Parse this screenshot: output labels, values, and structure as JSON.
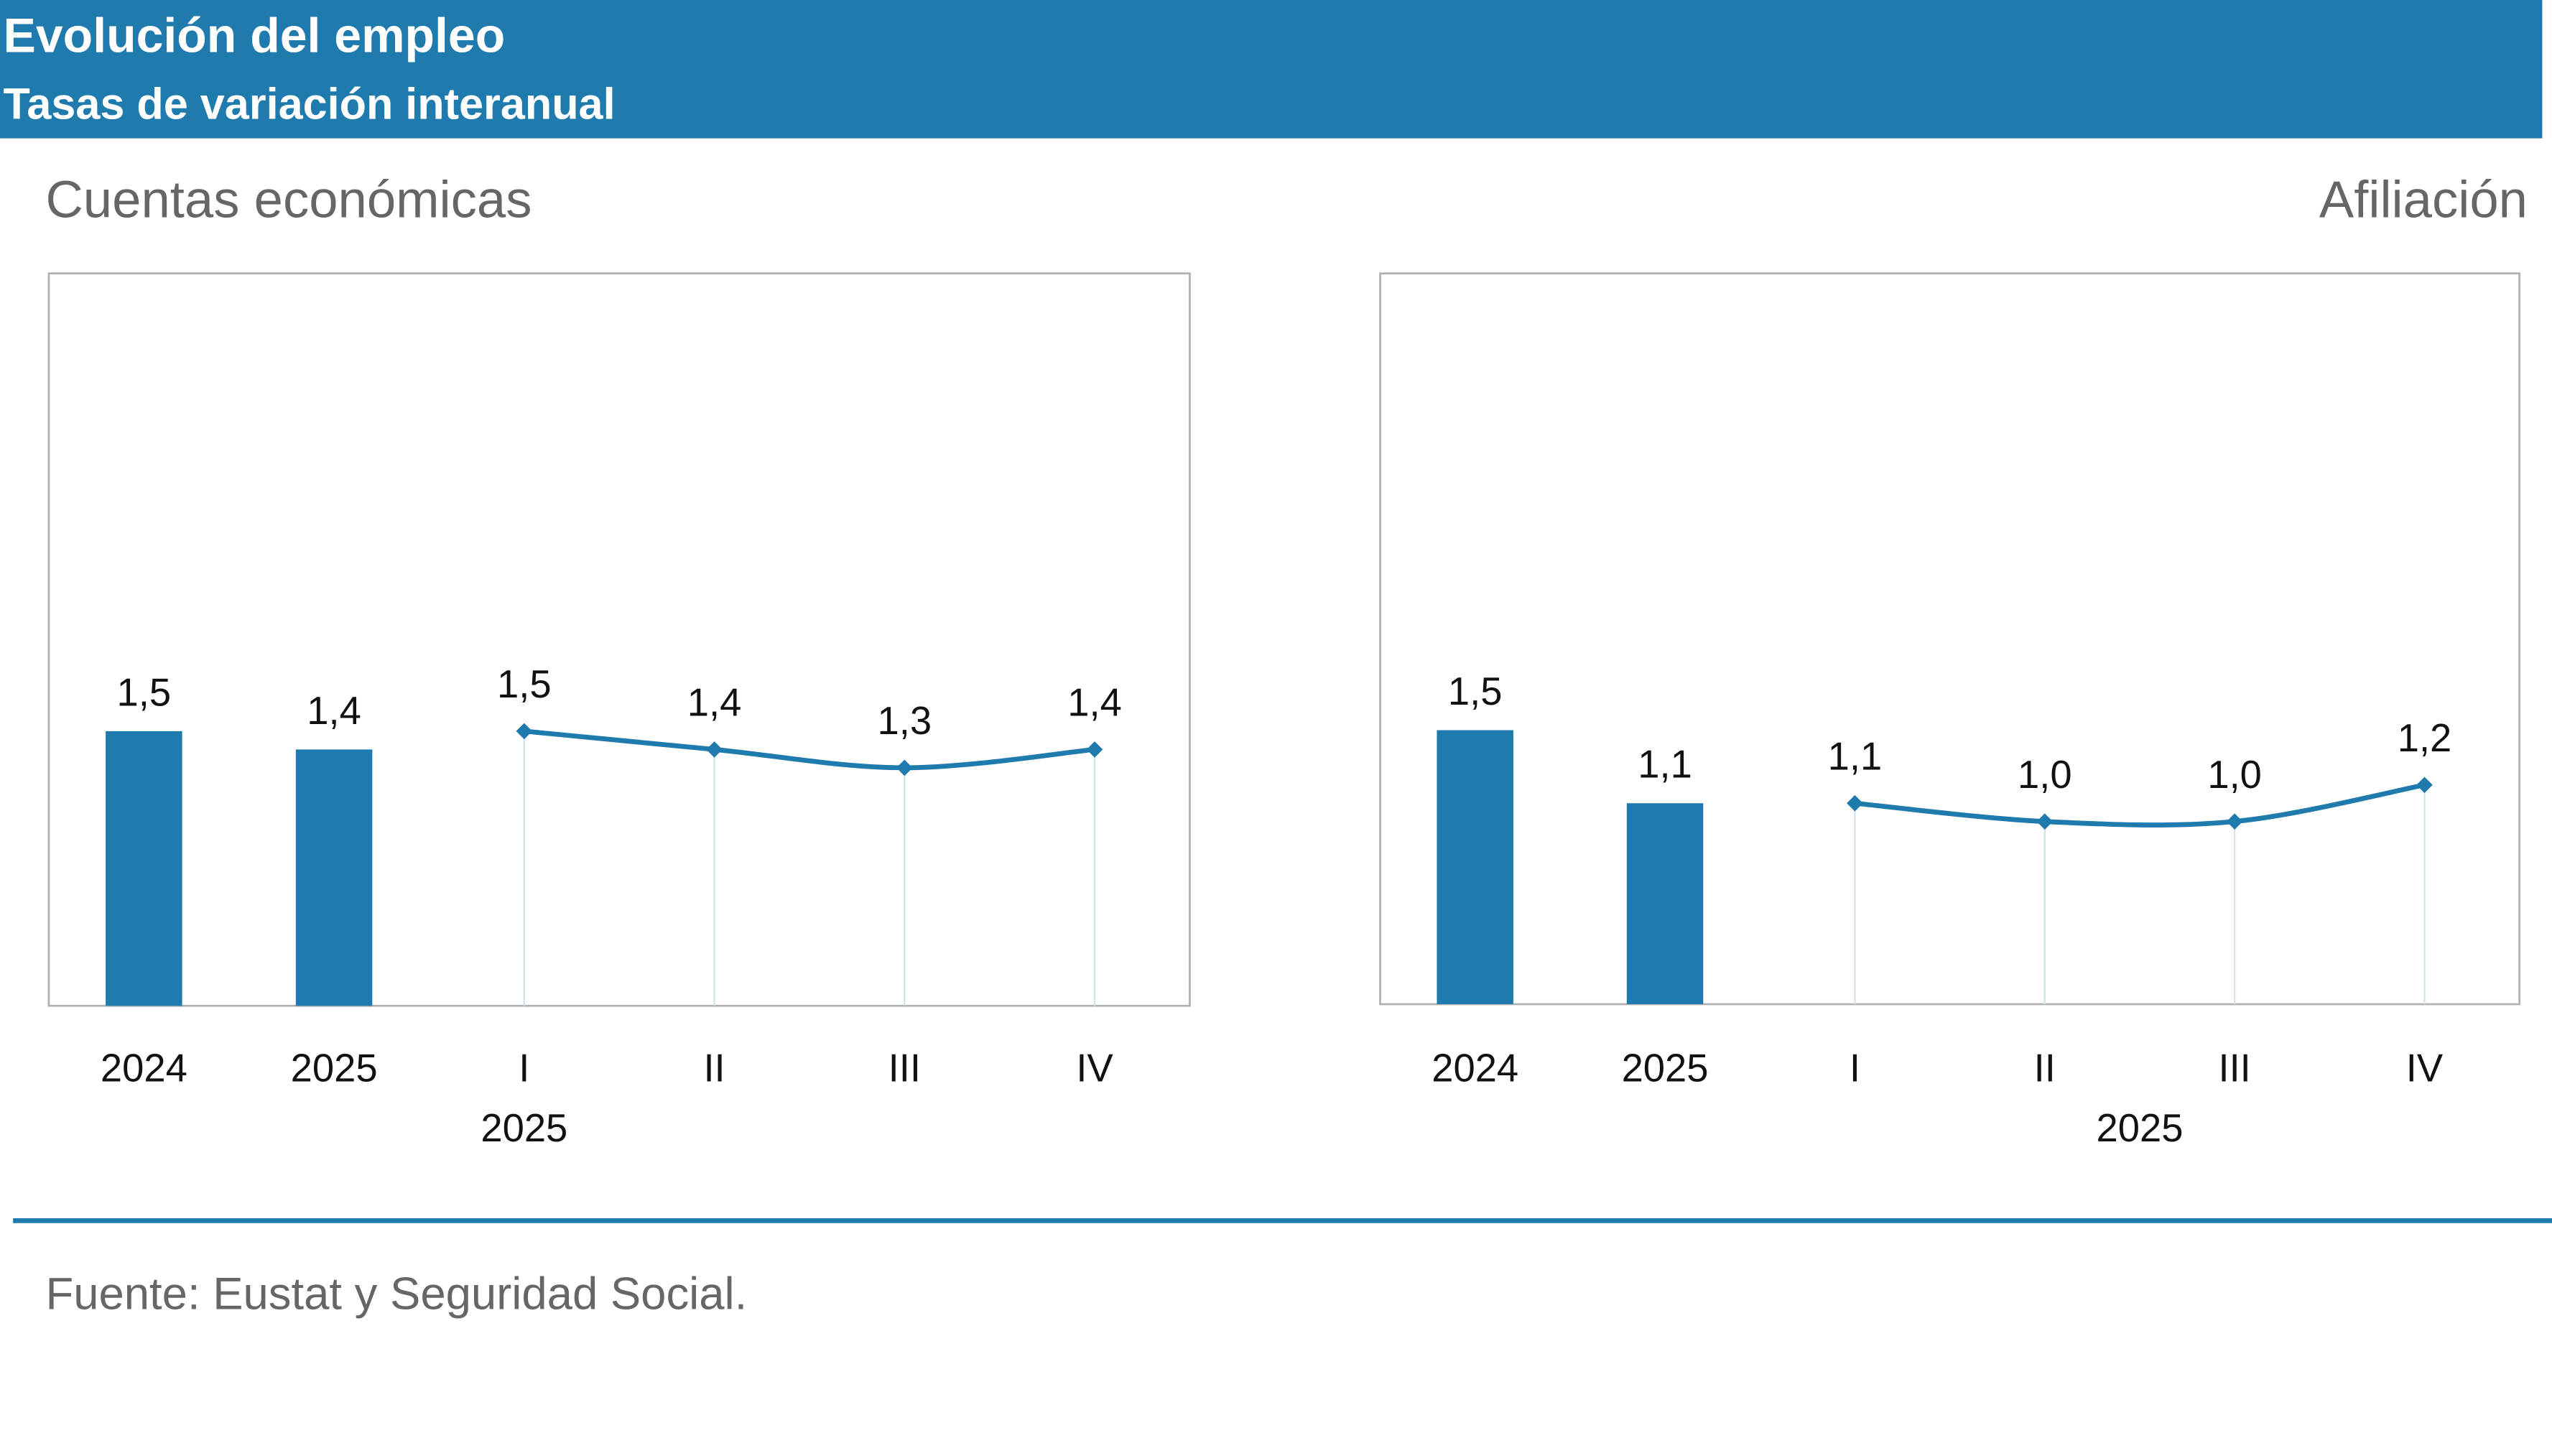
{
  "header": {
    "title": "Evolución del empleo",
    "subtitle": "Tasas de variación interanual"
  },
  "chart_data": [
    {
      "type": "combo",
      "title": "Cuentas económicas",
      "categories": [
        "2024",
        "2025",
        "I",
        "II",
        "III",
        "IV"
      ],
      "group_label": "2025",
      "ylim": [
        0,
        4
      ],
      "series": [
        {
          "type": "bar",
          "color": "#1f7bad",
          "values": [
            1.5,
            1.4,
            null,
            null,
            null,
            null
          ],
          "value_labels": [
            "1,5",
            "1,4",
            null,
            null,
            null,
            null
          ]
        },
        {
          "type": "line",
          "color": "#1f7bad",
          "values": [
            null,
            null,
            1.5,
            1.4,
            1.3,
            1.4
          ],
          "value_labels": [
            null,
            null,
            "1,5",
            "1,4",
            "1,3",
            "1,4"
          ]
        }
      ]
    },
    {
      "type": "combo",
      "title": "Afiliación",
      "categories": [
        "2024",
        "2025",
        "I",
        "II",
        "III",
        "IV"
      ],
      "group_label": "2025",
      "ylim": [
        0,
        4
      ],
      "series": [
        {
          "type": "bar",
          "color": "#1f7bad",
          "values": [
            1.5,
            1.1,
            null,
            null,
            null,
            null
          ],
          "value_labels": [
            "1,5",
            "1,1",
            null,
            null,
            null,
            null
          ]
        },
        {
          "type": "line",
          "color": "#1f7bad",
          "values": [
            null,
            null,
            1.1,
            1.0,
            1.0,
            1.2
          ],
          "value_labels": [
            null,
            null,
            "1,1",
            "1,0",
            "1,0",
            "1,2"
          ]
        }
      ]
    }
  ],
  "source": "Fuente: Eustat y Seguridad Social."
}
